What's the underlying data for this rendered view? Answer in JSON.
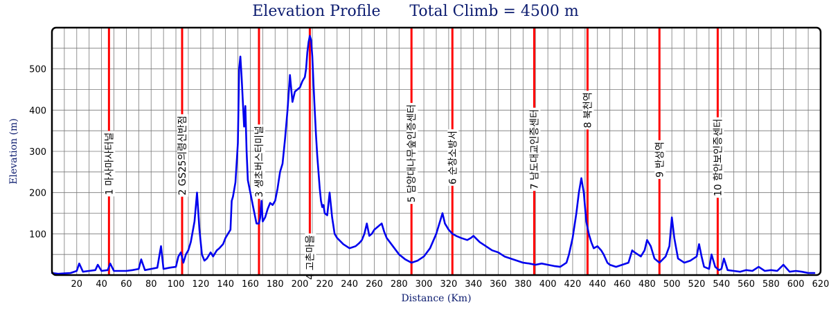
{
  "chart_data": {
    "type": "line",
    "title": "Elevation Profile      Total Climb = 4500 m",
    "xlabel": "Distance (Km)",
    "ylabel": "Elevation (m)",
    "xlim": [
      0,
      620
    ],
    "ylim": [
      0,
      600
    ],
    "grid": true,
    "x_ticks": [
      20,
      40,
      60,
      80,
      100,
      120,
      140,
      160,
      180,
      200,
      220,
      240,
      260,
      280,
      300,
      320,
      340,
      360,
      380,
      400,
      420,
      440,
      460,
      480,
      500,
      520,
      540,
      560,
      580,
      600,
      620
    ],
    "y_ticks": [
      100,
      200,
      300,
      400,
      500
    ],
    "line_color": "#0000ee",
    "marker_color": "#ff0000",
    "series": [
      {
        "x": [
          0,
          5,
          10,
          15,
          20,
          22,
          25,
          30,
          35,
          37,
          40,
          45,
          47,
          50,
          55,
          60,
          65,
          70,
          72,
          75,
          80,
          85,
          88,
          90,
          95,
          100,
          102,
          104,
          106,
          108,
          110,
          112,
          115,
          117,
          119,
          121,
          123,
          125,
          128,
          130,
          133,
          135,
          138,
          140,
          142,
          144,
          145,
          146,
          148,
          150,
          151,
          152,
          153,
          154,
          155,
          156,
          157,
          158,
          160,
          162,
          165,
          167,
          168,
          169,
          170,
          172,
          174,
          176,
          178,
          180,
          182,
          184,
          186,
          188,
          190,
          192,
          194,
          196,
          198,
          200,
          202,
          204,
          205,
          206,
          207,
          208,
          209,
          210,
          211,
          212,
          213,
          214,
          215,
          216,
          217,
          218,
          219,
          220,
          222,
          224,
          226,
          228,
          230,
          235,
          240,
          245,
          248,
          250,
          252,
          254,
          256,
          258,
          260,
          262,
          264,
          266,
          268,
          270,
          275,
          280,
          285,
          290,
          295,
          300,
          305,
          310,
          313,
          315,
          317,
          320,
          323,
          326,
          330,
          335,
          338,
          340,
          345,
          350,
          355,
          360,
          365,
          370,
          375,
          380,
          385,
          390,
          395,
          400,
          405,
          410,
          415,
          417,
          420,
          423,
          425,
          427,
          429,
          431,
          433,
          435,
          437,
          440,
          443,
          445,
          448,
          450,
          455,
          460,
          465,
          468,
          470,
          475,
          478,
          480,
          483,
          486,
          490,
          495,
          498,
          500,
          502,
          505,
          510,
          515,
          520,
          522,
          524,
          526,
          530,
          532,
          535,
          538,
          540,
          542,
          545,
          550,
          555,
          560,
          565,
          570,
          575,
          580,
          585,
          590,
          595,
          600,
          605,
          610,
          615
        ],
        "y": [
          5,
          3,
          4,
          5,
          10,
          28,
          8,
          10,
          12,
          25,
          10,
          12,
          28,
          10,
          10,
          10,
          12,
          15,
          38,
          12,
          15,
          18,
          70,
          15,
          18,
          20,
          45,
          55,
          30,
          50,
          60,
          80,
          130,
          200,
          110,
          50,
          35,
          40,
          55,
          45,
          60,
          65,
          75,
          90,
          100,
          110,
          180,
          190,
          225,
          320,
          500,
          530,
          480,
          420,
          360,
          410,
          300,
          230,
          200,
          170,
          125,
          125,
          140,
          180,
          130,
          140,
          160,
          175,
          170,
          180,
          210,
          250,
          270,
          330,
          400,
          485,
          420,
          445,
          450,
          455,
          470,
          480,
          500,
          540,
          565,
          580,
          570,
          530,
          460,
          400,
          340,
          290,
          250,
          210,
          180,
          165,
          170,
          150,
          145,
          200,
          140,
          100,
          90,
          75,
          65,
          70,
          78,
          85,
          100,
          125,
          95,
          100,
          110,
          115,
          120,
          125,
          105,
          90,
          70,
          50,
          38,
          30,
          35,
          45,
          65,
          100,
          130,
          150,
          125,
          110,
          100,
          95,
          90,
          85,
          90,
          95,
          80,
          70,
          60,
          55,
          45,
          40,
          35,
          30,
          28,
          25,
          28,
          25,
          22,
          20,
          30,
          50,
          90,
          150,
          200,
          235,
          200,
          130,
          100,
          80,
          65,
          70,
          60,
          50,
          30,
          25,
          20,
          25,
          30,
          60,
          55,
          45,
          60,
          85,
          70,
          40,
          30,
          45,
          70,
          140,
          90,
          40,
          30,
          35,
          45,
          75,
          45,
          20,
          15,
          50,
          20,
          12,
          15,
          40,
          12,
          10,
          8,
          12,
          10,
          20,
          10,
          12,
          10,
          25,
          8,
          10,
          8,
          5,
          5
        ]
      }
    ],
    "markers": [
      {
        "x": 46,
        "label": "1 마사마사터널",
        "label_center_y": 270
      },
      {
        "x": 105,
        "label": "2 GS25의령신반점",
        "label_center_y": 290
      },
      {
        "x": 167,
        "label": "3 생초버스터미널",
        "label_center_y": 275
      },
      {
        "x": 208,
        "label": "4 고촌마을",
        "label_center_y": 43
      },
      {
        "x": 290,
        "label": "5 담양대나무숲인증센터",
        "label_center_y": 295
      },
      {
        "x": 323,
        "label": "6 순창소방서",
        "label_center_y": 285
      },
      {
        "x": 389,
        "label": "7 남도대교인증센터",
        "label_center_y": 305
      },
      {
        "x": 432,
        "label": "8 북천역",
        "label_center_y": 400
      },
      {
        "x": 490,
        "label": "9 반성역",
        "label_center_y": 280
      },
      {
        "x": 537,
        "label": "10 함안보인증센터",
        "label_center_y": 285
      }
    ]
  }
}
